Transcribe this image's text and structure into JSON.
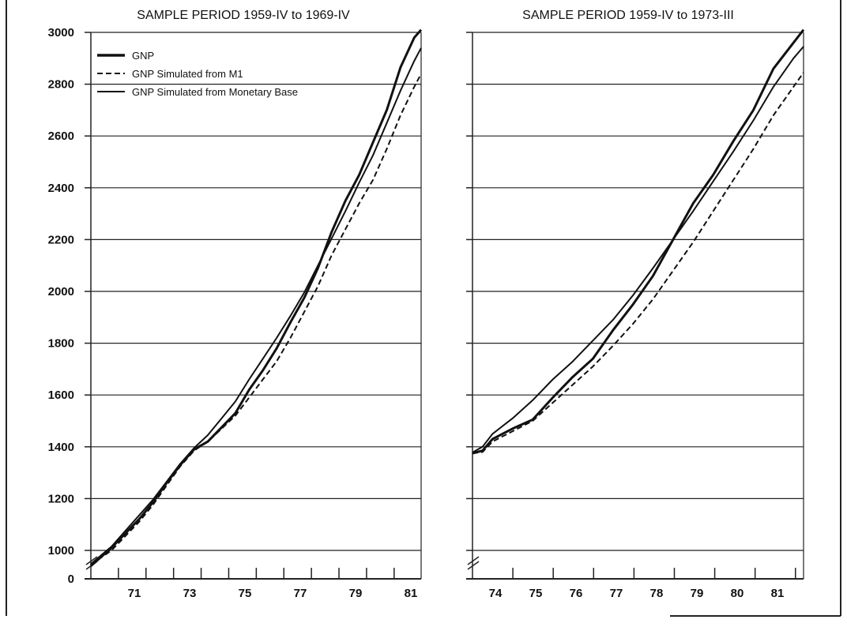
{
  "chart_data": [
    {
      "type": "line",
      "title": "SAMPLE PERIOD 1959-IV to 1969-IV",
      "xlabel": "",
      "ylabel": "",
      "y_ticks": [
        "3000",
        "2800",
        "2600",
        "2400",
        "2200",
        "2000",
        "1800",
        "1600",
        "1400",
        "1200",
        "1000",
        "0"
      ],
      "x_ticks": [
        "71",
        "73",
        "75",
        "77",
        "79",
        "81"
      ],
      "xlim": [
        1969.75,
        1981.75
      ],
      "ylim_broken": [
        900,
        3000
      ],
      "grid": true,
      "legend": {
        "position": "top-left",
        "entries": [
          "GNP",
          "GNP Simulated from M1",
          "GNP Simulated from Monetary Base"
        ]
      },
      "series": [
        {
          "name": "GNP",
          "style": "solid-heavy",
          "points": [
            [
              1969.75,
              940
            ],
            [
              1970.5,
              1010
            ],
            [
              1971.0,
              1065
            ],
            [
              1971.5,
              1120
            ],
            [
              1972.0,
              1185
            ],
            [
              1972.5,
              1260
            ],
            [
              1973.0,
              1330
            ],
            [
              1973.5,
              1390
            ],
            [
              1974.0,
              1420
            ],
            [
              1974.5,
              1475
            ],
            [
              1975.0,
              1530
            ],
            [
              1975.5,
              1620
            ],
            [
              1976.0,
              1695
            ],
            [
              1976.5,
              1780
            ],
            [
              1977.0,
              1880
            ],
            [
              1977.5,
              1975
            ],
            [
              1978.0,
              2090
            ],
            [
              1978.5,
              2230
            ],
            [
              1979.0,
              2350
            ],
            [
              1979.5,
              2450
            ],
            [
              1980.0,
              2575
            ],
            [
              1980.5,
              2700
            ],
            [
              1981.0,
              2865
            ],
            [
              1981.5,
              2980
            ],
            [
              1981.75,
              3010
            ]
          ]
        },
        {
          "name": "GNP Simulated from M1",
          "style": "dashed",
          "points": [
            [
              1969.75,
              945
            ],
            [
              1970.5,
              1000
            ],
            [
              1971.0,
              1055
            ],
            [
              1971.5,
              1110
            ],
            [
              1972.0,
              1175
            ],
            [
              1972.5,
              1250
            ],
            [
              1973.0,
              1325
            ],
            [
              1973.5,
              1385
            ],
            [
              1974.0,
              1420
            ],
            [
              1974.5,
              1470
            ],
            [
              1975.0,
              1520
            ],
            [
              1975.5,
              1590
            ],
            [
              1976.0,
              1660
            ],
            [
              1976.5,
              1730
            ],
            [
              1977.0,
              1820
            ],
            [
              1977.5,
              1920
            ],
            [
              1978.0,
              2020
            ],
            [
              1978.5,
              2140
            ],
            [
              1979.0,
              2240
            ],
            [
              1979.5,
              2340
            ],
            [
              1980.0,
              2430
            ],
            [
              1980.5,
              2550
            ],
            [
              1981.0,
              2680
            ],
            [
              1981.5,
              2790
            ],
            [
              1981.75,
              2840
            ]
          ]
        },
        {
          "name": "GNP Simulated from Monetary Base",
          "style": "solid",
          "points": [
            [
              1969.75,
              948
            ],
            [
              1970.5,
              1015
            ],
            [
              1971.0,
              1075
            ],
            [
              1971.5,
              1135
            ],
            [
              1972.0,
              1195
            ],
            [
              1972.5,
              1265
            ],
            [
              1973.0,
              1335
            ],
            [
              1973.5,
              1395
            ],
            [
              1974.0,
              1445
            ],
            [
              1974.5,
              1510
            ],
            [
              1975.0,
              1575
            ],
            [
              1975.5,
              1660
            ],
            [
              1976.0,
              1740
            ],
            [
              1976.5,
              1820
            ],
            [
              1977.0,
              1905
            ],
            [
              1977.5,
              1995
            ],
            [
              1978.0,
              2100
            ],
            [
              1978.5,
              2205
            ],
            [
              1979.0,
              2310
            ],
            [
              1979.5,
              2420
            ],
            [
              1980.0,
              2525
            ],
            [
              1980.5,
              2650
            ],
            [
              1981.0,
              2775
            ],
            [
              1981.5,
              2890
            ],
            [
              1981.75,
              2940
            ]
          ]
        }
      ]
    },
    {
      "type": "line",
      "title": "SAMPLE PERIOD 1959-IV to 1973-III",
      "xlabel": "",
      "ylabel": "",
      "x_ticks": [
        "74",
        "75",
        "76",
        "77",
        "78",
        "79",
        "80",
        "81"
      ],
      "xlim": [
        1973.5,
        1981.75
      ],
      "ylim_broken": [
        900,
        3000
      ],
      "grid": true,
      "series": [
        {
          "name": "GNP",
          "style": "solid-heavy",
          "points": [
            [
              1973.5,
              1375
            ],
            [
              1973.75,
              1385
            ],
            [
              1974.0,
              1430
            ],
            [
              1974.5,
              1470
            ],
            [
              1975.0,
              1505
            ],
            [
              1975.5,
              1590
            ],
            [
              1976.0,
              1670
            ],
            [
              1976.5,
              1740
            ],
            [
              1977.0,
              1850
            ],
            [
              1977.5,
              1950
            ],
            [
              1978.0,
              2060
            ],
            [
              1978.5,
              2200
            ],
            [
              1979.0,
              2340
            ],
            [
              1979.5,
              2450
            ],
            [
              1980.0,
              2580
            ],
            [
              1980.5,
              2700
            ],
            [
              1981.0,
              2860
            ],
            [
              1981.5,
              2960
            ],
            [
              1981.75,
              3010
            ]
          ]
        },
        {
          "name": "GNP Simulated from M1",
          "style": "dashed",
          "points": [
            [
              1973.5,
              1375
            ],
            [
              1973.75,
              1380
            ],
            [
              1974.0,
              1420
            ],
            [
              1974.5,
              1460
            ],
            [
              1975.0,
              1500
            ],
            [
              1975.5,
              1570
            ],
            [
              1976.0,
              1640
            ],
            [
              1976.5,
              1710
            ],
            [
              1977.0,
              1790
            ],
            [
              1977.5,
              1875
            ],
            [
              1978.0,
              1970
            ],
            [
              1978.5,
              2080
            ],
            [
              1979.0,
              2190
            ],
            [
              1979.5,
              2310
            ],
            [
              1980.0,
              2430
            ],
            [
              1980.5,
              2550
            ],
            [
              1981.0,
              2680
            ],
            [
              1981.5,
              2790
            ],
            [
              1981.75,
              2845
            ]
          ]
        },
        {
          "name": "GNP Simulated from Monetary Base",
          "style": "solid",
          "points": [
            [
              1973.5,
              1378
            ],
            [
              1973.75,
              1400
            ],
            [
              1974.0,
              1450
            ],
            [
              1974.5,
              1510
            ],
            [
              1975.0,
              1580
            ],
            [
              1975.5,
              1660
            ],
            [
              1976.0,
              1730
            ],
            [
              1976.5,
              1810
            ],
            [
              1977.0,
              1890
            ],
            [
              1977.5,
              1985
            ],
            [
              1978.0,
              2090
            ],
            [
              1978.5,
              2200
            ],
            [
              1979.0,
              2310
            ],
            [
              1979.5,
              2425
            ],
            [
              1980.0,
              2540
            ],
            [
              1980.5,
              2660
            ],
            [
              1981.0,
              2790
            ],
            [
              1981.5,
              2900
            ],
            [
              1981.75,
              2945
            ]
          ]
        }
      ]
    }
  ]
}
